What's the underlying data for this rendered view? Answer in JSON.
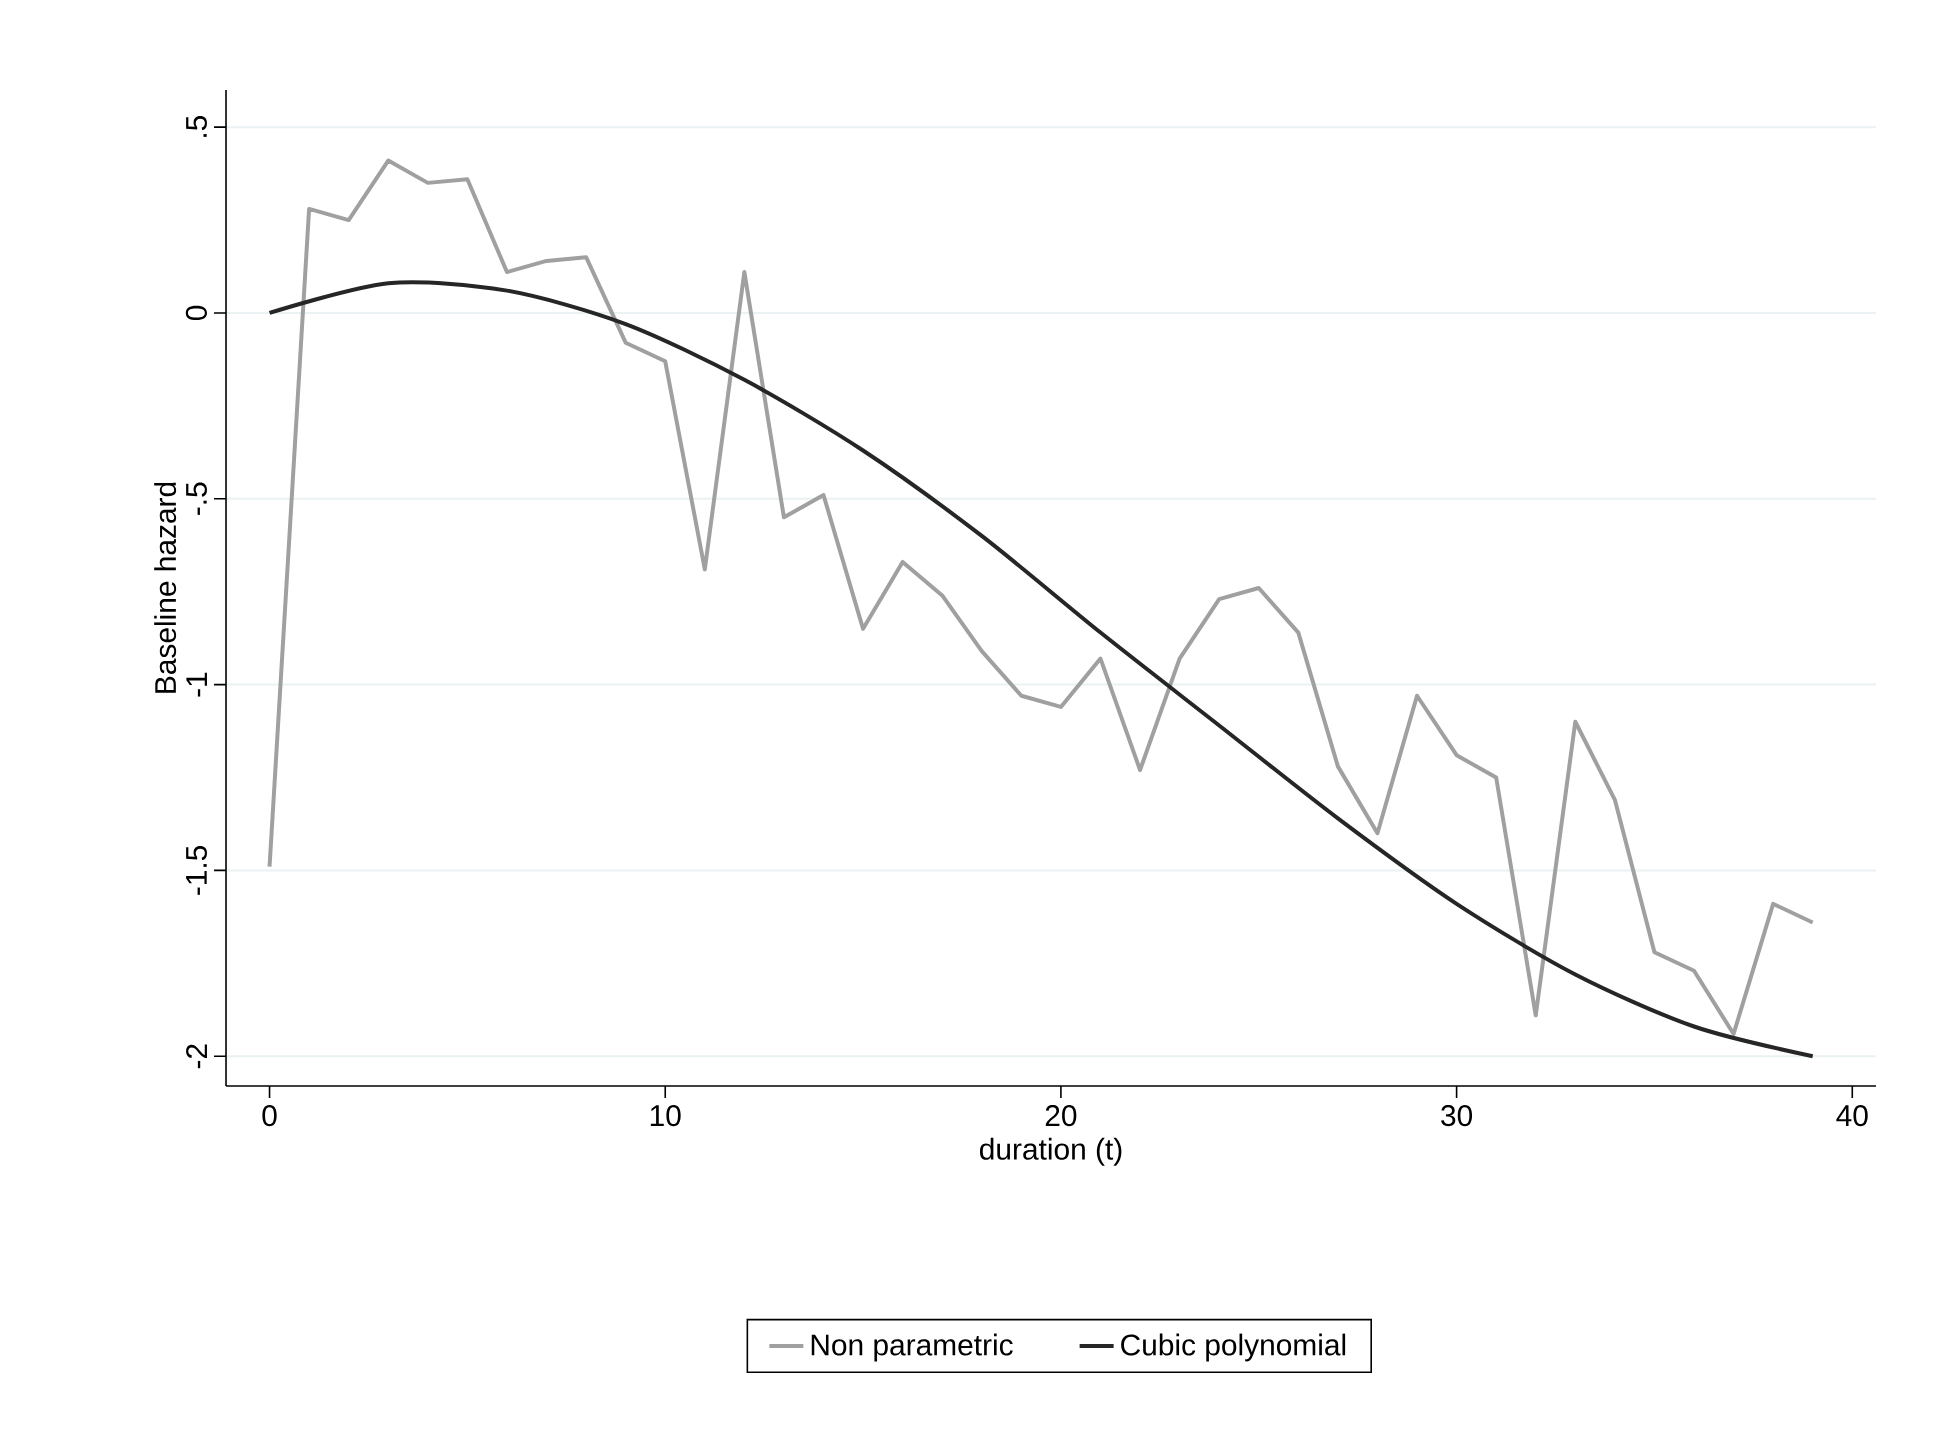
{
  "chart_data": {
    "type": "line",
    "xlabel": "duration (t)",
    "ylabel": "Baseline hazard",
    "xlim": [
      -1.1,
      40.6
    ],
    "ylim": [
      -2.08,
      0.6
    ],
    "xticks": [
      0,
      10,
      20,
      30,
      40
    ],
    "yticks": [
      {
        "value": 0.5,
        "label": ".5"
      },
      {
        "value": 0,
        "label": "0"
      },
      {
        "value": -0.5,
        "label": "-.5"
      },
      {
        "value": -1,
        "label": "-1"
      },
      {
        "value": -1.5,
        "label": "-1.5"
      },
      {
        "value": -2,
        "label": "-2"
      }
    ],
    "grid": "y",
    "legend": "bottom",
    "marker": "none",
    "line_style": "solid",
    "series": [
      {
        "name": "Non parametric",
        "color": "#a0a0a0",
        "x": [
          0,
          1,
          2,
          3,
          4,
          5,
          6,
          7,
          8,
          9,
          10,
          11,
          12,
          13,
          14,
          15,
          16,
          17,
          18,
          19,
          20,
          21,
          22,
          23,
          24,
          25,
          26,
          27,
          28,
          29,
          30,
          31,
          32,
          33,
          34,
          35,
          36,
          37,
          38,
          39
        ],
        "values": [
          -1.49,
          0.28,
          0.25,
          0.41,
          0.35,
          0.36,
          0.11,
          0.14,
          0.15,
          -0.08,
          -0.13,
          -0.69,
          0.11,
          -0.55,
          -0.49,
          -0.85,
          -0.67,
          -0.76,
          -0.91,
          -1.03,
          -1.06,
          -0.93,
          -1.23,
          -0.93,
          -0.77,
          -0.74,
          -0.86,
          -1.22,
          -1.4,
          -1.03,
          -1.19,
          -1.25,
          -1.89,
          -1.1,
          -1.31,
          -1.72,
          -1.77,
          -1.94,
          -1.59,
          -1.64
        ]
      },
      {
        "name": "Cubic polynomial",
        "color": "#262626",
        "x": [
          0,
          3,
          6,
          9,
          12,
          15,
          18,
          21,
          24,
          27,
          30,
          33,
          36,
          39
        ],
        "values": [
          0,
          0.08,
          0.06,
          -0.03,
          -0.18,
          -0.37,
          -0.6,
          -0.86,
          -1.11,
          -1.36,
          -1.59,
          -1.78,
          -1.92,
          -2.0
        ]
      }
    ]
  }
}
